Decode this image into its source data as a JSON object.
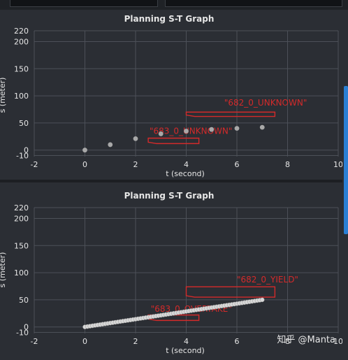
{
  "chart_data": [
    {
      "type": "scatter",
      "title": "Planning S-T Graph",
      "xlabel": "t (second)",
      "ylabel": "s (meter)",
      "xlim": [
        -2,
        10
      ],
      "ylim": [
        -12,
        220
      ],
      "xticks": [
        -2,
        0,
        2,
        4,
        6,
        8,
        10
      ],
      "yticks": [
        -10,
        0,
        50,
        100,
        150,
        200,
        220
      ],
      "grid": true,
      "points": [
        {
          "x": 0,
          "y": 0
        },
        {
          "x": 1,
          "y": 10
        },
        {
          "x": 2,
          "y": 21
        },
        {
          "x": 3,
          "y": 30
        },
        {
          "x": 4,
          "y": 35
        },
        {
          "x": 5,
          "y": 38
        },
        {
          "x": 6,
          "y": 40
        },
        {
          "x": 7,
          "y": 42
        }
      ],
      "obstacles": [
        {
          "label": "\"682_0_UNKNOWN\"",
          "t_start": 4.0,
          "t_end": 7.5,
          "s_low": 62,
          "s_high": 70,
          "label_x": 5.5,
          "label_y": 82
        },
        {
          "label": "\"683_0_UNKNOWN\"",
          "t_start": 2.5,
          "t_end": 4.5,
          "s_low": 12,
          "s_high": 22,
          "label_x": 2.55,
          "label_y": 30
        }
      ]
    },
    {
      "type": "line",
      "title": "Planning S-T Graph",
      "xlabel": "t (second)",
      "ylabel": "s (meter)",
      "xlim": [
        -2,
        10
      ],
      "ylim": [
        -12,
        220
      ],
      "xticks": [
        -2,
        0,
        2,
        4,
        6,
        8,
        10
      ],
      "yticks": [
        -10,
        0,
        50,
        100,
        150,
        200,
        220
      ],
      "grid": true,
      "line": {
        "x_start": 0,
        "y_start": 0,
        "x_end": 7,
        "y_end": 50,
        "samples": 71
      },
      "obstacles": [
        {
          "label": "\"682_0_YIELD\"",
          "t_start": 4.0,
          "t_end": 7.5,
          "s_low": 55,
          "s_high": 74,
          "label_x": 6.0,
          "label_y": 82
        },
        {
          "label": "\"683_0_OVERTAKE\"",
          "t_start": 2.5,
          "t_end": 4.5,
          "s_low": 12,
          "s_high": 22,
          "label_x": 2.6,
          "label_y": 28
        }
      ]
    }
  ],
  "watermark": "知乎 @Manta",
  "colors": {
    "plot_bg": "#2b2e34",
    "grid": "#4c5058",
    "axis_text": "#e6e6e6",
    "obstacle": "#d42a2a",
    "point": "#a8a8a8",
    "line_point": "#d8d8d8"
  }
}
